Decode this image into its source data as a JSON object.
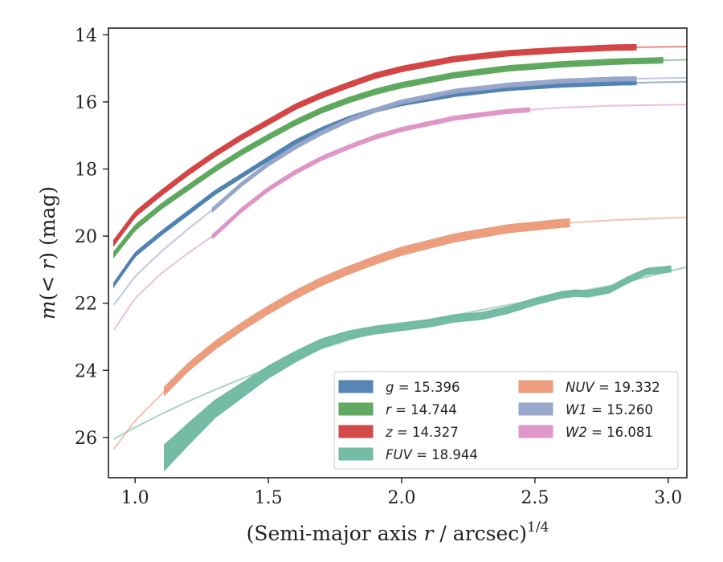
{
  "chart_data": {
    "type": "line",
    "xlabel": "(Semi-major axis r / arcsec)",
    "xlabel_sup": "1/4",
    "ylabel": "m(< r) (mag)",
    "xlim": [
      0.9,
      3.07
    ],
    "ylim": [
      27.2,
      13.8
    ],
    "y_inverted": true,
    "xticks": [
      1.0,
      1.5,
      2.0,
      2.5,
      3.0
    ],
    "xtick_labels": [
      "1.0",
      "1.5",
      "2.0",
      "2.5",
      "3.0"
    ],
    "yticks": [
      14,
      16,
      18,
      20,
      22,
      24,
      26
    ],
    "ytick_labels": [
      "14",
      "16",
      "18",
      "20",
      "22",
      "24",
      "26"
    ],
    "grid": false,
    "legend_position": "lower-right",
    "legend_columns": 2,
    "series": [
      {
        "name": "g = 15.396",
        "band": "g",
        "value_label": "15.396",
        "color": "#4c7fb0",
        "model_range": [
          0.92,
          3.07
        ],
        "data_range": [
          0.92,
          2.88
        ],
        "points": [
          [
            0.92,
            21.45
          ],
          [
            1.0,
            20.55
          ],
          [
            1.1,
            19.9
          ],
          [
            1.2,
            19.3
          ],
          [
            1.3,
            18.7
          ],
          [
            1.4,
            18.2
          ],
          [
            1.5,
            17.7
          ],
          [
            1.6,
            17.2
          ],
          [
            1.7,
            16.82
          ],
          [
            1.8,
            16.5
          ],
          [
            1.9,
            16.25
          ],
          [
            2.0,
            16.05
          ],
          [
            2.2,
            15.78
          ],
          [
            2.4,
            15.6
          ],
          [
            2.6,
            15.5
          ],
          [
            2.8,
            15.44
          ],
          [
            3.07,
            15.4
          ]
        ],
        "band_half_width": 0.06
      },
      {
        "name": "r = 14.744",
        "band": "r",
        "value_label": "14.744",
        "color": "#5aa55a",
        "model_range": [
          0.92,
          3.07
        ],
        "data_range": [
          0.92,
          2.98
        ],
        "points": [
          [
            0.92,
            20.55
          ],
          [
            1.0,
            19.75
          ],
          [
            1.1,
            19.1
          ],
          [
            1.2,
            18.55
          ],
          [
            1.3,
            18.0
          ],
          [
            1.4,
            17.5
          ],
          [
            1.5,
            17.05
          ],
          [
            1.6,
            16.62
          ],
          [
            1.7,
            16.25
          ],
          [
            1.8,
            15.95
          ],
          [
            1.9,
            15.7
          ],
          [
            2.0,
            15.5
          ],
          [
            2.2,
            15.2
          ],
          [
            2.4,
            15.0
          ],
          [
            2.6,
            14.88
          ],
          [
            2.8,
            14.8
          ],
          [
            3.07,
            14.74
          ]
        ],
        "band_half_width": 0.08
      },
      {
        "name": "z = 14.327",
        "band": "z",
        "value_label": "14.327",
        "color": "#d23f3f",
        "model_range": [
          0.92,
          3.07
        ],
        "data_range": [
          0.92,
          2.88
        ],
        "points": [
          [
            0.92,
            20.2
          ],
          [
            1.0,
            19.35
          ],
          [
            1.1,
            18.7
          ],
          [
            1.2,
            18.1
          ],
          [
            1.3,
            17.55
          ],
          [
            1.4,
            17.05
          ],
          [
            1.5,
            16.6
          ],
          [
            1.6,
            16.15
          ],
          [
            1.7,
            15.8
          ],
          [
            1.8,
            15.5
          ],
          [
            1.9,
            15.22
          ],
          [
            2.0,
            15.02
          ],
          [
            2.2,
            14.72
          ],
          [
            2.4,
            14.55
          ],
          [
            2.6,
            14.45
          ],
          [
            2.8,
            14.38
          ],
          [
            3.07,
            14.35
          ]
        ],
        "band_half_width": 0.08
      },
      {
        "name": "FUV = 18.944",
        "band": "FUV",
        "value_label": "18.944",
        "color": "#6db8a0",
        "model_range": [
          0.92,
          3.07
        ],
        "data_range": [
          1.11,
          3.01
        ],
        "model_points": [
          [
            0.92,
            26.05
          ],
          [
            1.0,
            25.7
          ],
          [
            1.1,
            25.3
          ],
          [
            1.2,
            24.92
          ],
          [
            1.3,
            24.58
          ],
          [
            1.4,
            24.25
          ],
          [
            1.5,
            23.95
          ],
          [
            1.6,
            23.65
          ],
          [
            1.7,
            23.35
          ],
          [
            1.8,
            23.1
          ],
          [
            1.9,
            22.85
          ],
          [
            2.0,
            22.65
          ],
          [
            2.2,
            22.35
          ],
          [
            2.4,
            22.05
          ],
          [
            2.6,
            21.75
          ],
          [
            2.8,
            21.45
          ],
          [
            3.07,
            20.92
          ]
        ],
        "points": [
          [
            1.11,
            26.6
          ],
          [
            1.2,
            25.9
          ],
          [
            1.3,
            25.15
          ],
          [
            1.4,
            24.6
          ],
          [
            1.5,
            24.05
          ],
          [
            1.6,
            23.6
          ],
          [
            1.7,
            23.2
          ],
          [
            1.8,
            22.95
          ],
          [
            1.9,
            22.8
          ],
          [
            2.0,
            22.7
          ],
          [
            2.1,
            22.6
          ],
          [
            2.2,
            22.45
          ],
          [
            2.3,
            22.38
          ],
          [
            2.4,
            22.2
          ],
          [
            2.5,
            21.95
          ],
          [
            2.6,
            21.75
          ],
          [
            2.65,
            21.7
          ],
          [
            2.7,
            21.72
          ],
          [
            2.78,
            21.6
          ],
          [
            2.85,
            21.3
          ],
          [
            2.92,
            21.05
          ],
          [
            3.01,
            20.98
          ]
        ],
        "band_half_widths": [
          [
            1.11,
            0.38
          ],
          [
            1.3,
            0.26
          ],
          [
            1.5,
            0.18
          ],
          [
            1.8,
            0.12
          ],
          [
            2.5,
            0.1
          ],
          [
            3.01,
            0.09
          ]
        ]
      },
      {
        "name": "NUV = 19.332",
        "band": "NUV",
        "value_label": "19.332",
        "color": "#eb9a78",
        "model_range": [
          0.92,
          3.07
        ],
        "data_range": [
          1.11,
          2.63
        ],
        "points": [
          [
            0.92,
            26.35
          ],
          [
            1.0,
            25.5
          ],
          [
            1.1,
            24.7
          ],
          [
            1.2,
            23.9
          ],
          [
            1.3,
            23.25
          ],
          [
            1.4,
            22.7
          ],
          [
            1.5,
            22.2
          ],
          [
            1.6,
            21.75
          ],
          [
            1.7,
            21.35
          ],
          [
            1.8,
            21.02
          ],
          [
            1.9,
            20.72
          ],
          [
            2.0,
            20.45
          ],
          [
            2.2,
            20.05
          ],
          [
            2.4,
            19.78
          ],
          [
            2.6,
            19.62
          ],
          [
            2.8,
            19.52
          ],
          [
            3.07,
            19.44
          ]
        ],
        "band_half_width": 0.12
      },
      {
        "name": "W1 = 15.260",
        "band": "W1",
        "value_label": "15.260",
        "color": "#95a4c8",
        "model_range": [
          0.92,
          3.07
        ],
        "data_range": [
          1.29,
          2.88
        ],
        "points": [
          [
            0.92,
            22.05
          ],
          [
            1.0,
            21.2
          ],
          [
            1.1,
            20.45
          ],
          [
            1.2,
            19.78
          ],
          [
            1.3,
            19.15
          ],
          [
            1.4,
            18.45
          ],
          [
            1.5,
            17.85
          ],
          [
            1.6,
            17.35
          ],
          [
            1.7,
            16.92
          ],
          [
            1.8,
            16.55
          ],
          [
            1.9,
            16.25
          ],
          [
            2.0,
            16.0
          ],
          [
            2.2,
            15.68
          ],
          [
            2.4,
            15.5
          ],
          [
            2.6,
            15.38
          ],
          [
            2.8,
            15.32
          ],
          [
            3.07,
            15.28
          ]
        ],
        "band_half_width": 0.06
      },
      {
        "name": "W2 = 16.081",
        "band": "W2",
        "value_label": "16.081",
        "color": "#dd94c4",
        "model_range": [
          0.92,
          3.07
        ],
        "data_range": [
          1.29,
          2.48
        ],
        "points": [
          [
            0.92,
            22.8
          ],
          [
            1.0,
            21.85
          ],
          [
            1.1,
            21.1
          ],
          [
            1.2,
            20.5
          ],
          [
            1.3,
            19.95
          ],
          [
            1.4,
            19.22
          ],
          [
            1.5,
            18.6
          ],
          [
            1.6,
            18.1
          ],
          [
            1.7,
            17.68
          ],
          [
            1.8,
            17.35
          ],
          [
            1.9,
            17.05
          ],
          [
            2.0,
            16.82
          ],
          [
            2.2,
            16.48
          ],
          [
            2.4,
            16.28
          ],
          [
            2.6,
            16.17
          ],
          [
            2.8,
            16.11
          ],
          [
            3.07,
            16.08
          ]
        ],
        "band_half_width": 0.06
      }
    ],
    "legend_order": [
      0,
      1,
      2,
      3,
      4,
      5,
      6
    ]
  }
}
